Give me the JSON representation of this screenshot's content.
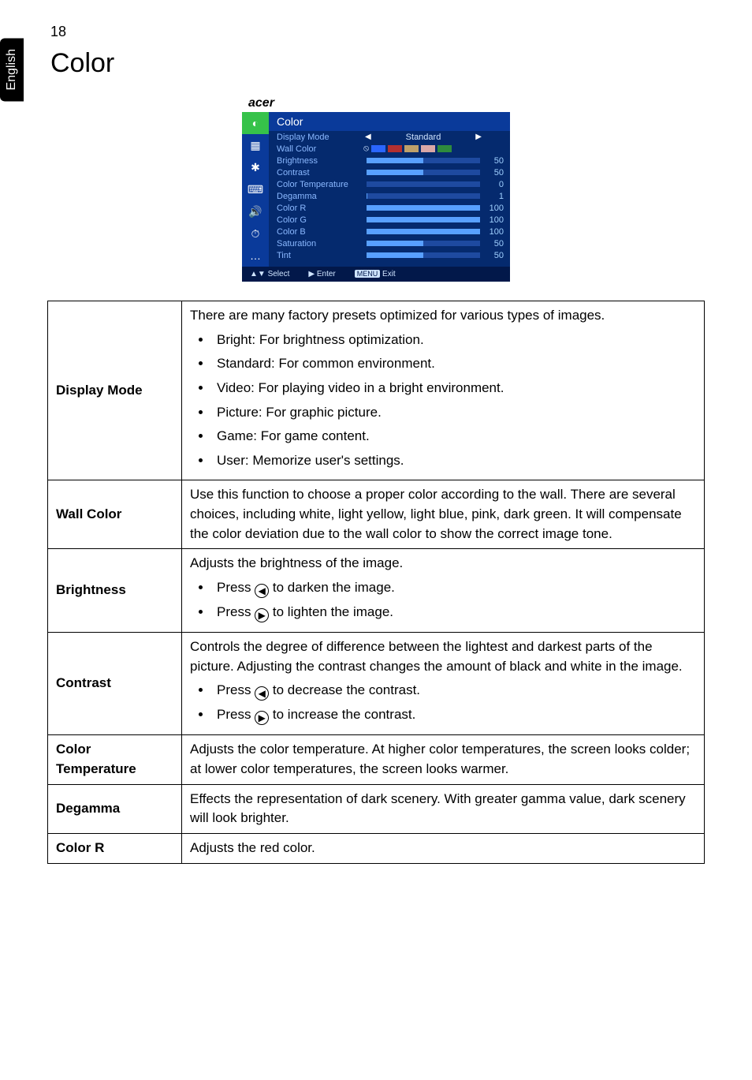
{
  "page_number": "18",
  "side_tab": "English",
  "heading": "Color",
  "osd": {
    "logo": "acer",
    "title": "Color",
    "icons": [
      "◐",
      "▦",
      "✱",
      "⌨",
      "🔊",
      "⏱",
      "…"
    ],
    "rows": [
      {
        "label": "Display Mode",
        "kind": "select",
        "value_text": "Standard"
      },
      {
        "label": "Wall Color",
        "kind": "swatches",
        "colors": [
          "#2a66ff",
          "#b23030",
          "#bda06a",
          "#d9a7a7",
          "#2e8b3d"
        ],
        "prefix_icon": "⦸"
      },
      {
        "label": "Brightness",
        "kind": "bar",
        "value": 50,
        "max": 100
      },
      {
        "label": "Contrast",
        "kind": "bar",
        "value": 50,
        "max": 100
      },
      {
        "label": "Color Temperature",
        "kind": "bar",
        "value": 0,
        "max": 100
      },
      {
        "label": "Degamma",
        "kind": "bar",
        "value": 1,
        "max": 100
      },
      {
        "label": "Color R",
        "kind": "bar",
        "value": 100,
        "max": 100
      },
      {
        "label": "Color G",
        "kind": "bar",
        "value": 100,
        "max": 100
      },
      {
        "label": "Color B",
        "kind": "bar",
        "value": 100,
        "max": 100
      },
      {
        "label": "Saturation",
        "kind": "bar",
        "value": 50,
        "max": 100
      },
      {
        "label": "Tint",
        "kind": "bar",
        "value": 50,
        "max": 100
      }
    ],
    "footer": {
      "select": "▲▼ Select",
      "enter": "▶ Enter",
      "exit_chip": "MENU",
      "exit": "Exit"
    }
  },
  "settings": [
    {
      "name": "Display Mode",
      "intro": "There are many factory presets optimized for various types of images.",
      "bullets": [
        "Bright: For brightness optimization.",
        "Standard: For common environment.",
        "Video: For playing video in a bright environment.",
        "Picture: For graphic picture.",
        "Game: For game content.",
        "User: Memorize user's settings."
      ]
    },
    {
      "name": "Wall Color",
      "text": "Use this function to choose a proper color according to the wall. There are several choices, including white, light yellow, light blue, pink, dark green. It will compensate the color deviation due to the wall color to show the correct image tone."
    },
    {
      "name": "Brightness",
      "intro": "Adjusts the brightness of the image.",
      "bullets_icon": [
        {
          "icon": "◀",
          "text": "to darken the image."
        },
        {
          "icon": "▶",
          "text": "to lighten the image."
        }
      ]
    },
    {
      "name": "Contrast",
      "intro": "Controls the degree of difference between the lightest and darkest parts of the picture. Adjusting the contrast changes the amount of black and white in the image.",
      "bullets_icon": [
        {
          "icon": "◀",
          "text": "to decrease the contrast."
        },
        {
          "icon": "▶",
          "text": "to increase the contrast."
        }
      ]
    },
    {
      "name": "Color Temperature",
      "text": "Adjusts the color temperature. At higher color temperatures, the screen looks colder; at lower color temperatures, the screen looks warmer."
    },
    {
      "name": "Degamma",
      "text": "Effects the representation of dark scenery. With greater gamma value, dark scenery will look brighter."
    },
    {
      "name": "Color R",
      "text": "Adjusts the red color."
    }
  ],
  "press_word": "Press"
}
